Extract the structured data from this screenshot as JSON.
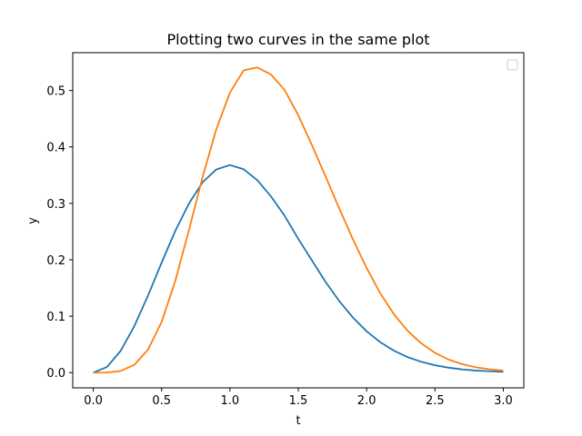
{
  "chart_data": {
    "type": "line",
    "title": "Plotting two curves in the same plot",
    "xlabel": "t",
    "ylabel": "y",
    "xlim": [
      -0.15,
      3.15
    ],
    "ylim": [
      -0.027,
      0.567
    ],
    "xticks": [
      0.0,
      0.5,
      1.0,
      1.5,
      2.0,
      2.5,
      3.0
    ],
    "xtick_labels": [
      "0.0",
      "0.5",
      "1.0",
      "1.5",
      "2.0",
      "2.5",
      "3.0"
    ],
    "yticks": [
      0.0,
      0.1,
      0.2,
      0.3,
      0.4,
      0.5
    ],
    "ytick_labels": [
      "0.0",
      "0.1",
      "0.2",
      "0.3",
      "0.4",
      "0.5"
    ],
    "grid": false,
    "legend": "upper-right (empty)",
    "series": [
      {
        "color": "#1f77b4",
        "x": [
          0.0,
          0.1,
          0.2,
          0.3,
          0.4,
          0.5,
          0.6,
          0.7,
          0.8,
          0.9,
          1.0,
          1.1,
          1.2,
          1.3,
          1.4,
          1.5,
          1.6,
          1.7,
          1.8,
          1.9,
          2.0,
          2.1,
          2.2,
          2.3,
          2.4,
          2.5,
          2.6,
          2.7,
          2.8,
          2.9,
          3.0
        ],
        "y": [
          0.0,
          0.0099,
          0.0384,
          0.0822,
          0.1363,
          0.1947,
          0.2511,
          0.2996,
          0.3374,
          0.36,
          0.3679,
          0.3605,
          0.3411,
          0.3124,
          0.278,
          0.2371,
          0.1987,
          0.1608,
          0.1267,
          0.0976,
          0.0733,
          0.0539,
          0.0389,
          0.0275,
          0.0192,
          0.013,
          0.0087,
          0.0057,
          0.0037,
          0.0024,
          0.0015
        ]
      },
      {
        "color": "#ff7f0e",
        "x": [
          0.0,
          0.1,
          0.2,
          0.3,
          0.4,
          0.5,
          0.6,
          0.7,
          0.8,
          0.9,
          1.0,
          1.1,
          1.2,
          1.3,
          1.4,
          1.5,
          1.6,
          1.7,
          1.8,
          1.9,
          2.0,
          2.1,
          2.2,
          2.3,
          2.4,
          2.5,
          2.6,
          2.7,
          2.8,
          2.9,
          3.0
        ],
        "y": [
          0.0,
          0.0002,
          0.0029,
          0.0137,
          0.0405,
          0.0898,
          0.1624,
          0.2524,
          0.3466,
          0.4312,
          0.4963,
          0.5356,
          0.5408,
          0.5284,
          0.5009,
          0.456,
          0.4031,
          0.3474,
          0.2909,
          0.2362,
          0.1854,
          0.1406,
          0.1034,
          0.0741,
          0.0518,
          0.035,
          0.0231,
          0.0151,
          0.0095,
          0.006,
          0.0036
        ]
      }
    ]
  }
}
